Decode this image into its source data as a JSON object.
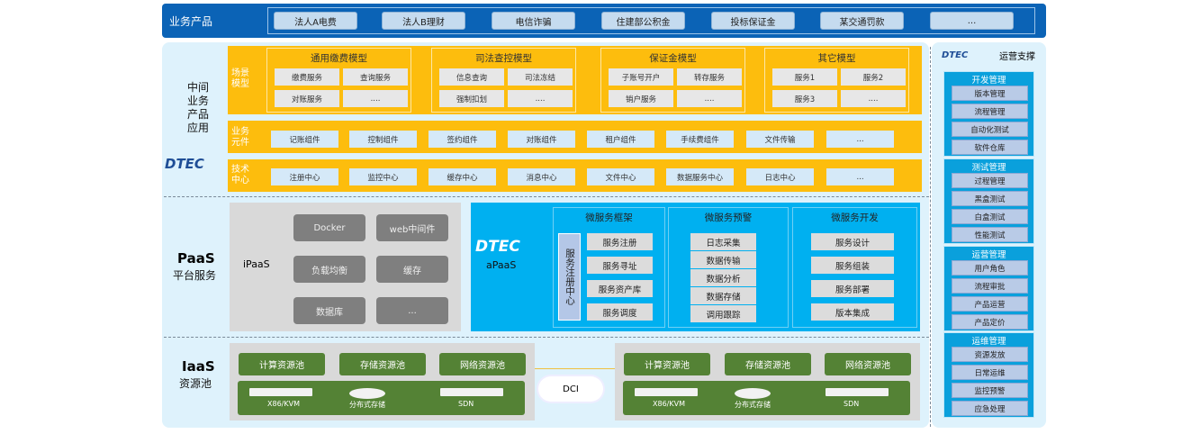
{
  "top": {
    "label": "业务产品",
    "items": [
      "法人A电费",
      "法人B理财",
      "电信诈骗",
      "住建部公积金",
      "投标保证金",
      "某交通罚款",
      "..."
    ]
  },
  "middle": {
    "label": [
      "中间",
      "业务",
      "产品",
      "应用"
    ],
    "logo": "DTEC",
    "scenario": {
      "label": "场景模型",
      "models": [
        {
          "title": "通用缴费模型",
          "items": [
            "缴费服务",
            "查询服务",
            "对账服务",
            "...."
          ]
        },
        {
          "title": "司法查控模型",
          "items": [
            "信息查询",
            "司法冻结",
            "强制扣划",
            "...."
          ]
        },
        {
          "title": "保证金模型",
          "items": [
            "子账号开户",
            "转存服务",
            "销户服务",
            "...."
          ]
        },
        {
          "title": "其它模型",
          "items": [
            "服务1",
            "服务2",
            "服务3",
            "...."
          ]
        }
      ]
    },
    "biz": {
      "label": "业务元件",
      "items": [
        "记账组件",
        "控制组件",
        "签约组件",
        "对账组件",
        "租户组件",
        "手续费组件",
        "文件传输",
        "..."
      ]
    },
    "tech": {
      "label": "技术中心",
      "items": [
        "注册中心",
        "监控中心",
        "缓存中心",
        "消息中心",
        "文件中心",
        "数据服务中心",
        "日志中心",
        "..."
      ]
    }
  },
  "paas": {
    "title": "PaaS",
    "subtitle": "平台服务",
    "ipaas": {
      "label": "iPaaS",
      "items": [
        "Docker",
        "web中间件",
        "负载均衡",
        "缓存",
        "数据库",
        "..."
      ]
    },
    "apaas": {
      "logo": "DTEC",
      "label": "aPaaS",
      "registry": "服务注册中心",
      "columns": [
        {
          "title": "微服务框架",
          "items": [
            "服务注册",
            "服务寻址",
            "服务资产库",
            "服务调度"
          ]
        },
        {
          "title": "微服务预警",
          "items": [
            "日志采集",
            "数据传输",
            "数据分析",
            "数据存储",
            "调用跟踪"
          ]
        },
        {
          "title": "微服务开发",
          "items": [
            "服务设计",
            "服务组装",
            "服务部署",
            "版本集成"
          ]
        }
      ]
    }
  },
  "iaas": {
    "title": "IaaS",
    "subtitle": "资源池",
    "pools": [
      "计算资源池",
      "存储资源池",
      "网络资源池"
    ],
    "hardware": [
      "X86/KVM",
      "分布式存储",
      "SDN"
    ],
    "dci": "DCI"
  },
  "ops": {
    "logo": "DTEC",
    "title": "运营支撑",
    "groups": [
      {
        "title": "开发管理",
        "items": [
          "版本管理",
          "流程管理",
          "自动化测试",
          "软件仓库"
        ]
      },
      {
        "title": "测试管理",
        "items": [
          "过程管理",
          "黑盒测试",
          "白盒测试",
          "性能测试"
        ]
      },
      {
        "title": "运营管理",
        "items": [
          "用户角色",
          "流程审批",
          "产品运营",
          "产品定价"
        ]
      },
      {
        "title": "运维管理",
        "items": [
          "资源发放",
          "日常运维",
          "监控预警",
          "应急处理"
        ]
      }
    ]
  },
  "colors": {
    "top": "#0b63b6",
    "yellow": "#fdbd0d",
    "cyan": "#00b0f0",
    "green": "#548235",
    "grey": "#7f7f7f"
  }
}
